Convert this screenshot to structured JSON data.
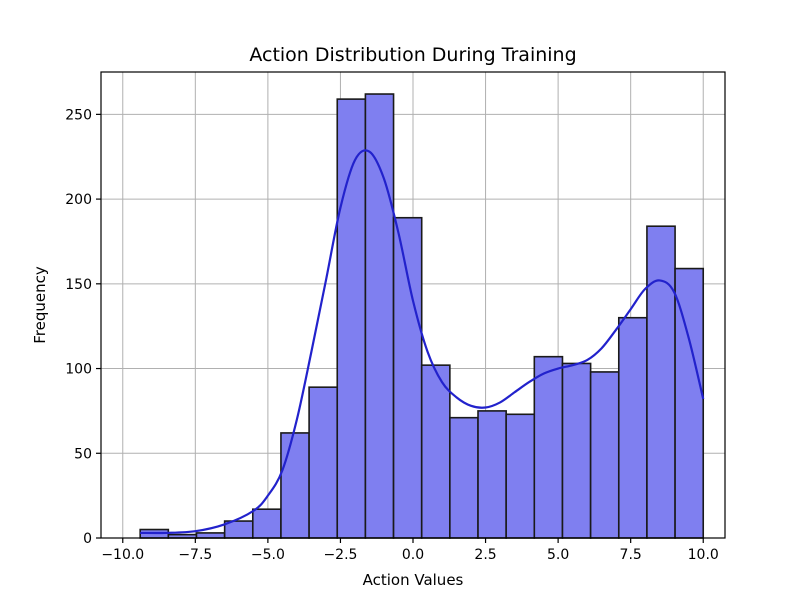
{
  "chart_data": {
    "type": "bar",
    "title": "Action Distribution During Training",
    "xlabel": "Action Values",
    "ylabel": "Frequency",
    "xlim": [
      -10.75,
      10.75
    ],
    "ylim": [
      0,
      275
    ],
    "x_ticks": [
      -10.0,
      -7.5,
      -5.0,
      -2.5,
      0.0,
      2.5,
      5.0,
      7.5,
      10.0
    ],
    "x_tick_labels": [
      "−10.0",
      "−7.5",
      "−5.0",
      "−2.5",
      "0.0",
      "2.5",
      "5.0",
      "7.5",
      "10.0"
    ],
    "y_ticks": [
      0,
      50,
      100,
      150,
      200,
      250
    ],
    "y_tick_labels": [
      "0",
      "50",
      "100",
      "150",
      "200",
      "250"
    ],
    "grid": true,
    "bars": {
      "bin_edges": [
        -9.4,
        -8.43,
        -7.46,
        -6.49,
        -5.52,
        -4.55,
        -3.58,
        -2.61,
        -1.64,
        -0.67,
        0.3,
        1.27,
        2.24,
        3.21,
        4.18,
        5.15,
        6.12,
        7.09,
        8.06,
        9.03,
        10.0
      ],
      "values": [
        5,
        2,
        3,
        10,
        17,
        62,
        89,
        259,
        262,
        189,
        102,
        71,
        75,
        73,
        107,
        103,
        98,
        130,
        184,
        159
      ],
      "fill_color": "#7f7ff0",
      "edge_color": "#1a1a1a"
    },
    "kde": {
      "color": "#2222cc",
      "x": [
        -9.4,
        -8.5,
        -7.5,
        -6.5,
        -5.5,
        -5.0,
        -4.5,
        -4.0,
        -3.5,
        -3.0,
        -2.5,
        -2.0,
        -1.5,
        -1.0,
        -0.5,
        0.0,
        0.5,
        1.0,
        1.5,
        2.0,
        2.5,
        3.0,
        3.5,
        4.0,
        4.5,
        5.0,
        5.5,
        6.0,
        6.5,
        7.0,
        7.5,
        8.0,
        8.5,
        9.0,
        9.5,
        10.0
      ],
      "y": [
        3,
        3,
        4,
        8,
        16,
        25,
        40,
        70,
        110,
        152,
        195,
        223,
        228,
        212,
        180,
        140,
        110,
        92,
        83,
        78,
        77,
        80,
        86,
        92,
        97,
        100,
        102,
        105,
        112,
        123,
        135,
        147,
        152,
        145,
        118,
        82
      ]
    }
  }
}
